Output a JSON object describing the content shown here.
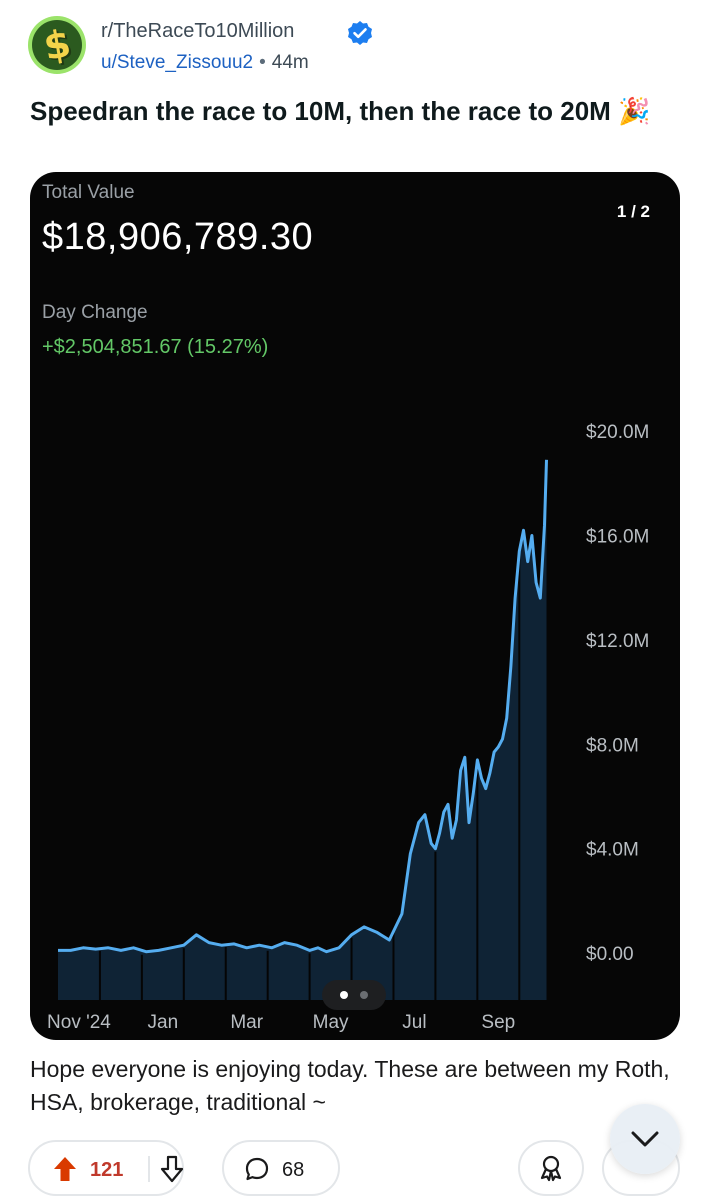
{
  "post": {
    "subreddit": "r/TheRaceTo10Million",
    "username": "u/Steve_Zissouu2",
    "separator": "•",
    "time_ago": "44m",
    "title": "Speedran the race to 10M, then the race to 20M 🎉",
    "body": "Hope everyone is enjoying today. These are between my Roth, HSA, brokerage, traditional ~"
  },
  "media": {
    "counter": "1 / 2",
    "total_value_label": "Total Value",
    "total_value": "$18,906,789.30",
    "day_change_label": "Day Change",
    "day_change": "+$2,504,851.67 (15.27%)",
    "page_count": 2,
    "current_page": 1
  },
  "actions": {
    "upvotes": "121",
    "comments": "68"
  },
  "colors": {
    "line": "#55adf0",
    "fill": "#0f2335",
    "gain": "#63c867",
    "upvote": "#d93a00"
  },
  "chart_data": {
    "type": "area",
    "title": "",
    "xlabel": "",
    "ylabel": "",
    "y_tick_labels": [
      "$20.0M",
      "$16.0M",
      "$12.0M",
      "$8.0M",
      "$4.0M",
      "$0.00"
    ],
    "y_ticks": [
      20,
      16,
      12,
      8,
      4,
      0
    ],
    "x_tick_labels": [
      "Nov '24",
      "Jan",
      "Mar",
      "May",
      "Jul",
      "Sep"
    ],
    "x_ticks": [
      0.5,
      2.5,
      4.5,
      6.5,
      8.5,
      10.5
    ],
    "ylim": [
      -1.8,
      21.5
    ],
    "xlim": [
      0,
      12.4
    ],
    "grid": false,
    "series": [
      {
        "x": [
          0,
          0.3,
          0.6,
          0.9,
          1.2,
          1.5,
          1.8,
          2.1,
          2.4,
          2.7,
          3.0,
          3.3,
          3.6,
          3.9,
          4.2,
          4.5,
          4.8,
          5.1,
          5.4,
          5.7,
          6.0,
          6.2,
          6.4,
          6.7,
          7.0,
          7.3,
          7.6,
          7.9,
          8.2,
          8.4,
          8.6,
          8.75,
          8.9,
          9.0,
          9.1,
          9.2,
          9.3,
          9.4,
          9.5,
          9.6,
          9.7,
          9.8,
          9.9,
          10.0,
          10.1,
          10.2,
          10.3,
          10.4,
          10.5,
          10.6,
          10.7,
          10.8,
          10.9,
          11.0,
          11.1,
          11.2,
          11.3,
          11.4,
          11.5,
          11.6,
          11.65
        ],
        "values": [
          0.1,
          0.1,
          0.2,
          0.15,
          0.2,
          0.1,
          0.2,
          0.05,
          0.1,
          0.2,
          0.3,
          0.7,
          0.4,
          0.3,
          0.35,
          0.2,
          0.3,
          0.2,
          0.4,
          0.3,
          0.1,
          0.2,
          0.05,
          0.2,
          0.7,
          1.0,
          0.8,
          0.5,
          1.5,
          3.8,
          5.0,
          5.3,
          4.2,
          4.0,
          4.6,
          5.4,
          5.7,
          4.4,
          5.1,
          7.0,
          7.5,
          5.0,
          6.1,
          7.4,
          6.7,
          6.3,
          6.9,
          7.7,
          7.9,
          8.2,
          9.0,
          11.0,
          13.6,
          15.4,
          16.2,
          15.0,
          16.0,
          14.2,
          13.6,
          16.4,
          18.9
        ]
      }
    ],
    "annotations": []
  }
}
